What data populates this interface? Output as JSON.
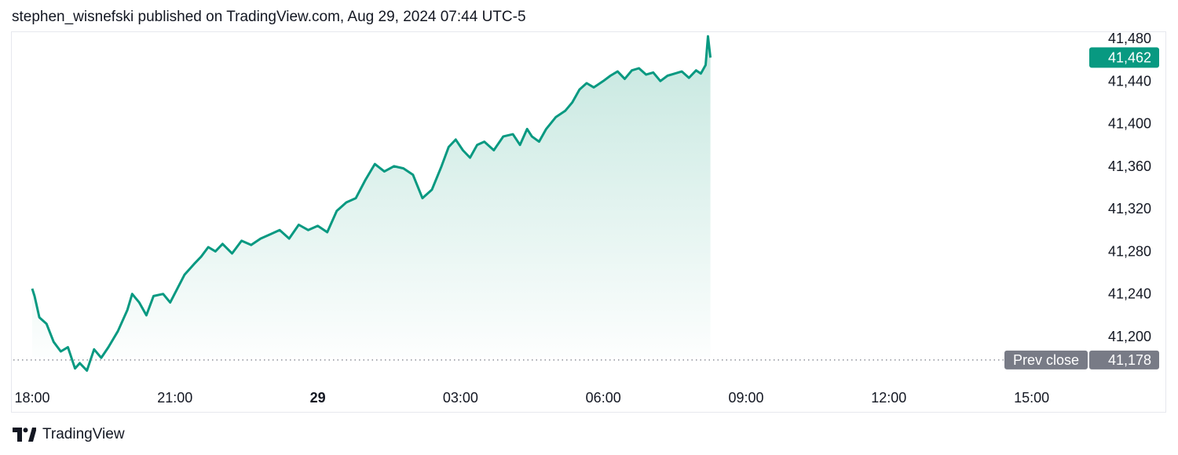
{
  "header": {
    "published_line": "stephen_wisnefski published on TradingView.com, Aug 29, 2024 07:44 UTC-5"
  },
  "footer": {
    "brand": "TradingView",
    "logo_icon": "tradingview-logo-icon"
  },
  "colors": {
    "line": "#089981",
    "area_top": "#c5e7df",
    "area_bottom": "#ffffff",
    "prev_close_badge": "#787b86",
    "last_price_badge": "#089981"
  },
  "chart_data": {
    "type": "area",
    "title": "",
    "xlabel": "",
    "ylabel": "",
    "ylim": [
      41160,
      41485
    ],
    "x_range_hours": [
      0,
      24.3
    ],
    "x_ticks": [
      {
        "label": "18:00",
        "h": 0,
        "bold": false
      },
      {
        "label": "21:00",
        "h": 3,
        "bold": false
      },
      {
        "label": "29",
        "h": 6,
        "bold": true
      },
      {
        "label": "03:00",
        "h": 9,
        "bold": false
      },
      {
        "label": "06:00",
        "h": 12,
        "bold": false
      },
      {
        "label": "09:00",
        "h": 15,
        "bold": false
      },
      {
        "label": "12:00",
        "h": 18,
        "bold": false
      },
      {
        "label": "15:00",
        "h": 21,
        "bold": false
      }
    ],
    "y_ticks": [
      "41,480",
      "41,440",
      "41,400",
      "41,360",
      "41,320",
      "41,280",
      "41,240",
      "41,200"
    ],
    "y_tick_values": [
      41480,
      41440,
      41400,
      41360,
      41320,
      41280,
      41240,
      41200
    ],
    "last_price": {
      "value": 41462,
      "label": "41,462"
    },
    "prev_close": {
      "value": 41178,
      "label": "41,178",
      "title": "Prev close"
    },
    "series": [
      {
        "x": [
          0.0,
          0.05,
          0.15,
          0.3,
          0.45,
          0.6,
          0.75,
          0.9,
          1.0,
          1.15,
          1.3,
          1.45,
          1.6,
          1.8,
          2.0,
          2.1,
          2.25,
          2.4,
          2.55,
          2.75,
          2.9,
          3.05,
          3.2,
          3.4,
          3.55,
          3.7,
          3.85,
          4.0,
          4.2,
          4.4,
          4.6,
          4.8,
          5.0,
          5.2,
          5.4,
          5.6,
          5.8,
          6.0,
          6.2,
          6.4,
          6.6,
          6.8,
          7.0,
          7.2,
          7.4,
          7.6,
          7.8,
          8.0,
          8.2,
          8.4,
          8.6,
          8.75,
          8.9,
          9.05,
          9.2,
          9.35,
          9.5,
          9.7,
          9.9,
          10.1,
          10.25,
          10.4,
          10.5,
          10.65,
          10.8,
          11.0,
          11.2,
          11.35,
          11.5,
          11.65,
          11.8,
          12.0,
          12.15,
          12.3,
          12.45,
          12.6,
          12.75,
          12.9,
          13.05,
          13.2,
          13.35,
          13.5,
          13.65,
          13.8,
          13.95,
          14.05,
          14.15,
          14.2,
          14.25
        ],
        "values": [
          41245,
          41238,
          41218,
          41212,
          41195,
          41186,
          41190,
          41170,
          41175,
          41168,
          41188,
          41180,
          41190,
          41205,
          41225,
          41240,
          41232,
          41220,
          41238,
          41240,
          41232,
          41245,
          41258,
          41268,
          41275,
          41284,
          41280,
          41287,
          41278,
          41290,
          41286,
          41292,
          41296,
          41300,
          41292,
          41305,
          41300,
          41304,
          41298,
          41318,
          41326,
          41330,
          41347,
          41362,
          41355,
          41360,
          41358,
          41352,
          41330,
          41338,
          41360,
          41378,
          41385,
          41375,
          41368,
          41380,
          41383,
          41375,
          41388,
          41390,
          41380,
          41395,
          41388,
          41383,
          41395,
          41406,
          41412,
          41420,
          41432,
          41438,
          41434,
          41440,
          41445,
          41449,
          41442,
          41450,
          41452,
          41446,
          41448,
          41440,
          41445,
          41447,
          41449,
          41443,
          41450,
          41447,
          41455,
          41482,
          41462
        ]
      }
    ]
  }
}
